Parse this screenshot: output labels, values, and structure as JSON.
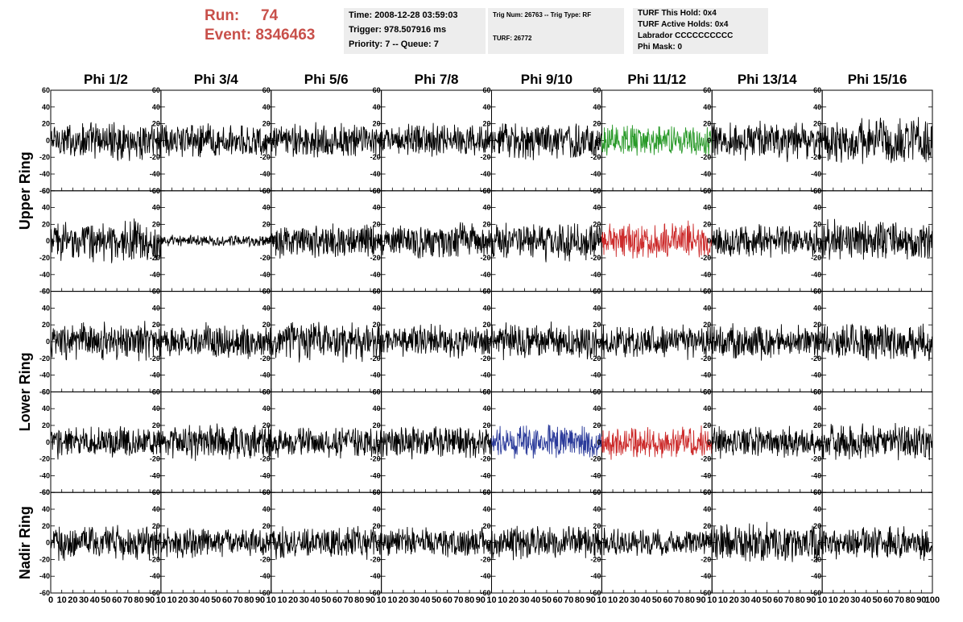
{
  "header": {
    "run_label": "Run:",
    "run_value": "74",
    "event_label": "Event:",
    "event_value": "8346463"
  },
  "info_box_1": {
    "time": "Time: 2008-12-28 03:59:03",
    "trigger": "Trigger: 978.507916 ms",
    "priority": "Priority: 7 -- Queue: 7"
  },
  "info_box_2": {
    "trig": "Trig Num: 26763 -- Trig Type: RF",
    "turf": "TURF: 26772"
  },
  "info_box_3": {
    "this_hold": "TURF This Hold: 0x4",
    "active_holds": "TURF Active Holds: 0x4",
    "labrador": "Labrador CCCCCCCCCC",
    "phi_mask": "Phi Mask: 0"
  },
  "colors": {
    "header_red": "#c8504a",
    "trace_default": "#000000",
    "trace_green": "#2a9a2a",
    "trace_red": "#cc2b2b",
    "trace_blue": "#2a3a9a",
    "info_bg": "#ededed"
  },
  "chart_data": {
    "type": "line",
    "column_titles": [
      "Phi 1/2",
      "Phi 3/4",
      "Phi 5/6",
      "Phi 7/8",
      "Phi 9/10",
      "Phi 11/12",
      "Phi 13/14",
      "Phi 15/16"
    ],
    "ring_labels": [
      "Upper Ring",
      "Lower Ring",
      "Nadir Ring"
    ],
    "ring_row_span": [
      2,
      2,
      1
    ],
    "rows": 5,
    "columns": 8,
    "ylim": [
      -60,
      60
    ],
    "y_ticks": [
      -60,
      -40,
      -20,
      0,
      20,
      40,
      60
    ],
    "y_tick_labels": [
      "-60",
      "-40",
      "-20",
      "0",
      "20",
      "40",
      "60"
    ],
    "xlim": [
      0,
      100
    ],
    "x_ticks": [
      0,
      10,
      20,
      30,
      40,
      50,
      60,
      70,
      80,
      90,
      100
    ],
    "x_tick_labels_first": [
      "0",
      "10",
      "20",
      "30",
      "40",
      "50",
      "60",
      "70",
      "80",
      "90",
      "10"
    ],
    "x_tick_labels_middle": [
      "10",
      "20",
      "30",
      "40",
      "50",
      "60",
      "70",
      "80",
      "90",
      "10"
    ],
    "x_tick_labels_last": [
      "10",
      "20",
      "30",
      "40",
      "50",
      "60",
      "70",
      "80",
      "90",
      "100"
    ],
    "samples_per_trace": 260,
    "trace_amplitude": [
      [
        20,
        18,
        18,
        17,
        20,
        17,
        20,
        24
      ],
      [
        21,
        6,
        18,
        20,
        20,
        19,
        17,
        22
      ],
      [
        20,
        18,
        21,
        17,
        19,
        17,
        18,
        19
      ],
      [
        17,
        19,
        16,
        17,
        17,
        17,
        16,
        19
      ],
      [
        18,
        15,
        16,
        15,
        17,
        15,
        21,
        18
      ]
    ],
    "highlighted": [
      {
        "row": 0,
        "col": 5,
        "color": "green"
      },
      {
        "row": 1,
        "col": 5,
        "color": "red"
      },
      {
        "row": 3,
        "col": 4,
        "color": "blue"
      },
      {
        "row": 3,
        "col": 5,
        "color": "red"
      }
    ]
  }
}
